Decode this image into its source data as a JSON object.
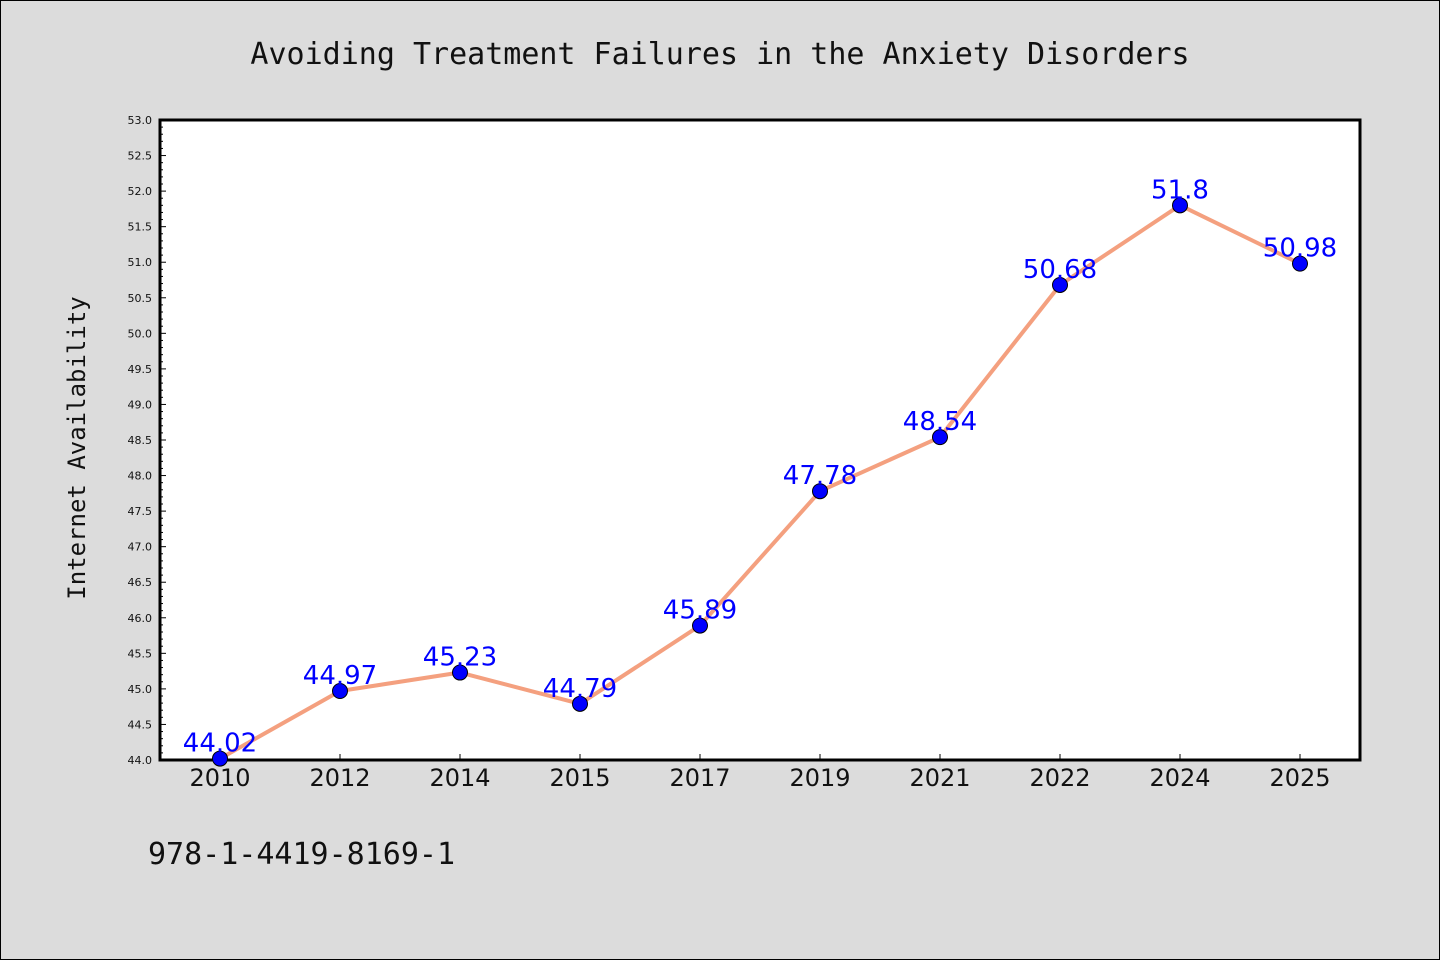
{
  "chart_data": {
    "type": "line",
    "title": "Avoiding Treatment Failures in the Anxiety Disorders",
    "xlabel": "",
    "ylabel": "Internet Availability",
    "categories": [
      "2010",
      "2012",
      "2014",
      "2015",
      "2017",
      "2019",
      "2021",
      "2022",
      "2024",
      "2025"
    ],
    "values": [
      44.02,
      44.97,
      45.23,
      44.79,
      45.89,
      47.78,
      48.54,
      50.68,
      51.8,
      50.98
    ],
    "data_labels": [
      "44.02",
      "44.97",
      "45.23",
      "44.79",
      "45.89",
      "47.78",
      "48.54",
      "50.68",
      "51.8",
      "50.98"
    ],
    "ylim": [
      44.0,
      53.0
    ],
    "yticks": [
      "44.0",
      "44.5",
      "45.0",
      "45.5",
      "46.0",
      "46.5",
      "47.0",
      "47.5",
      "48.0",
      "48.5",
      "49.0",
      "49.5",
      "50.0",
      "50.5",
      "51.0",
      "51.5",
      "52.0",
      "52.5",
      "53.0"
    ],
    "grid": false,
    "legend": "none",
    "line_color": "#f4a07f",
    "marker_color": "#0000ff",
    "label_color": "#0000ff"
  },
  "footer_text": "978-1-4419-8169-1"
}
